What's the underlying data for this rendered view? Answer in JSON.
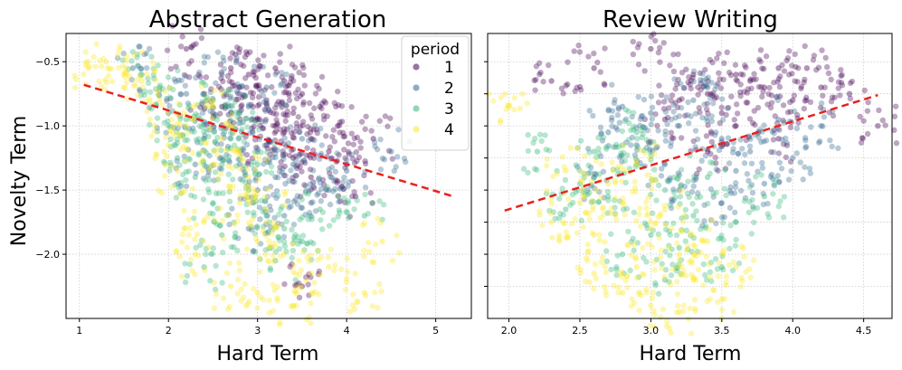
{
  "chart_data": [
    {
      "type": "scatter",
      "title": "Abstract Generation",
      "xlabel": "Hard Term",
      "ylabel": "Novelty Term",
      "xlim": [
        0.85,
        5.4
      ],
      "ylim": [
        -2.5,
        -0.28
      ],
      "xticks": [
        1,
        2,
        3,
        4,
        5
      ],
      "xtick_labels": [
        "1",
        "2",
        "3",
        "4",
        "5"
      ],
      "yticks": [
        -0.5,
        -1.0,
        -1.5,
        -2.0
      ],
      "ytick_labels": [
        "−0.5",
        "−1.0",
        "−1.5",
        "−2.0"
      ],
      "grid": true,
      "legend": {
        "title": "period",
        "position": "top-right",
        "entries": [
          {
            "label": "1",
            "color": "#440154"
          },
          {
            "label": "2",
            "color": "#31688e"
          },
          {
            "label": "3",
            "color": "#35b779"
          },
          {
            "label": "4",
            "color": "#fde725"
          }
        ]
      },
      "series": [
        {
          "name": "1",
          "color": "#440154",
          "points": [
            [
              3.1,
              -0.8
            ],
            [
              3.4,
              -0.9
            ],
            [
              2.8,
              -0.7
            ],
            [
              3.6,
              -1.1
            ],
            [
              3.2,
              -1.0
            ],
            [
              2.9,
              -0.6
            ],
            [
              3.5,
              -0.75
            ],
            [
              3.8,
              -1.2
            ],
            [
              3.3,
              -0.65
            ],
            [
              2.6,
              -0.85
            ],
            [
              3.0,
              -0.95
            ],
            [
              3.7,
              -0.85
            ],
            [
              4.0,
              -1.3
            ],
            [
              3.4,
              -1.25
            ],
            [
              2.4,
              -0.75
            ],
            [
              3.9,
              -1.0
            ],
            [
              3.2,
              -0.55
            ],
            [
              2.2,
              -0.4
            ],
            [
              3.6,
              -1.4
            ],
            [
              4.3,
              -1.1
            ],
            [
              3.5,
              -2.25
            ],
            [
              3.1,
              -1.15
            ],
            [
              2.7,
              -0.55
            ],
            [
              3.3,
              -1.05
            ],
            [
              4.1,
              -1.55
            ]
          ]
        },
        {
          "name": "2",
          "color": "#31688e",
          "points": [
            [
              2.7,
              -1.0
            ],
            [
              3.0,
              -1.2
            ],
            [
              2.5,
              -0.9
            ],
            [
              3.2,
              -1.4
            ],
            [
              2.9,
              -0.85
            ],
            [
              3.4,
              -1.3
            ],
            [
              2.2,
              -0.75
            ],
            [
              3.6,
              -1.6
            ],
            [
              2.8,
              -1.3
            ],
            [
              3.1,
              -0.7
            ],
            [
              2.4,
              -1.1
            ],
            [
              3.8,
              -1.5
            ],
            [
              2.6,
              -0.6
            ],
            [
              3.3,
              -1.7
            ],
            [
              2.0,
              -0.9
            ],
            [
              4.0,
              -1.35
            ],
            [
              3.0,
              -1.5
            ],
            [
              2.3,
              -1.3
            ],
            [
              1.6,
              -0.55
            ],
            [
              3.5,
              -1.1
            ],
            [
              4.5,
              -1.2
            ],
            [
              2.9,
              -1.8
            ]
          ]
        },
        {
          "name": "3",
          "color": "#35b779",
          "points": [
            [
              2.4,
              -1.1
            ],
            [
              2.6,
              -1.3
            ],
            [
              2.2,
              -0.95
            ],
            [
              2.9,
              -1.5
            ],
            [
              2.5,
              -1.6
            ],
            [
              3.1,
              -1.7
            ],
            [
              2.0,
              -1.0
            ],
            [
              2.7,
              -1.1
            ],
            [
              3.3,
              -1.8
            ],
            [
              2.3,
              -1.4
            ],
            [
              2.8,
              -0.9
            ],
            [
              1.9,
              -0.7
            ],
            [
              3.5,
              -1.9
            ],
            [
              2.6,
              -1.85
            ],
            [
              3.0,
              -1.3
            ],
            [
              2.1,
              -1.25
            ],
            [
              3.7,
              -1.65
            ],
            [
              2.5,
              -0.8
            ],
            [
              3.2,
              -2.05
            ],
            [
              1.7,
              -0.6
            ],
            [
              4.2,
              -1.7
            ],
            [
              2.4,
              -2.1
            ]
          ]
        },
        {
          "name": "4",
          "color": "#fde725",
          "points": [
            [
              2.2,
              -1.0
            ],
            [
              2.5,
              -1.3
            ],
            [
              1.9,
              -0.8
            ],
            [
              2.8,
              -1.6
            ],
            [
              2.4,
              -1.75
            ],
            [
              3.0,
              -1.9
            ],
            [
              1.7,
              -0.65
            ],
            [
              2.6,
              -1.1
            ],
            [
              3.3,
              -2.0
            ],
            [
              2.1,
              -1.35
            ],
            [
              2.9,
              -1.4
            ],
            [
              1.5,
              -0.6
            ],
            [
              3.6,
              -2.15
            ],
            [
              2.3,
              -2.0
            ],
            [
              3.1,
              -1.65
            ],
            [
              2.0,
              -1.15
            ],
            [
              3.8,
              -2.1
            ],
            [
              2.7,
              -2.25
            ],
            [
              1.3,
              -0.5
            ],
            [
              4.2,
              -2.3
            ],
            [
              3.4,
              -2.4
            ],
            [
              2.5,
              -0.85
            ],
            [
              4.4,
              -1.9
            ],
            [
              1.1,
              -0.55
            ],
            [
              3.0,
              -2.3
            ]
          ]
        }
      ],
      "trendline": {
        "x": [
          1.05,
          5.2
        ],
        "y": [
          -0.68,
          -1.55
        ],
        "color": "#e8221e",
        "style": "dashed"
      }
    },
    {
      "type": "scatter",
      "title": "Review Writing",
      "xlabel": "Hard Term",
      "ylabel": "",
      "xlim": [
        1.85,
        4.7
      ],
      "ylim": [
        -2.5,
        -0.28
      ],
      "xticks": [
        2.0,
        2.5,
        3.0,
        3.5,
        4.0,
        4.5
      ],
      "xtick_labels": [
        "2.0",
        "2.5",
        "3.0",
        "3.5",
        "4.0",
        "4.5"
      ],
      "yticks": [
        -0.5,
        -0.75,
        -1.0,
        -1.25,
        -1.5,
        -1.75,
        -2.0,
        -2.25
      ],
      "ytick_labels": [],
      "grid": true,
      "series": [
        {
          "name": "1",
          "color": "#440154",
          "points": [
            [
              3.6,
              -0.6
            ],
            [
              3.8,
              -0.7
            ],
            [
              3.4,
              -0.75
            ],
            [
              3.9,
              -0.55
            ],
            [
              3.5,
              -0.9
            ],
            [
              3.7,
              -0.65
            ],
            [
              4.0,
              -0.8
            ],
            [
              3.3,
              -0.6
            ],
            [
              4.1,
              -0.55
            ],
            [
              3.2,
              -0.8
            ],
            [
              3.6,
              -1.0
            ],
            [
              4.2,
              -0.7
            ],
            [
              3.9,
              -1.1
            ],
            [
              3.1,
              -0.95
            ],
            [
              2.6,
              -0.55
            ],
            [
              4.4,
              -0.75
            ],
            [
              3.0,
              -0.4
            ],
            [
              2.3,
              -0.65
            ],
            [
              4.6,
              -1.0
            ],
            [
              3.4,
              -1.2
            ]
          ]
        },
        {
          "name": "2",
          "color": "#31688e",
          "points": [
            [
              3.2,
              -1.0
            ],
            [
              3.5,
              -1.1
            ],
            [
              3.0,
              -0.9
            ],
            [
              3.7,
              -1.2
            ],
            [
              3.3,
              -0.8
            ],
            [
              3.6,
              -1.35
            ],
            [
              2.9,
              -1.15
            ],
            [
              3.9,
              -0.95
            ],
            [
              3.1,
              -1.3
            ],
            [
              3.4,
              -0.7
            ],
            [
              2.8,
              -0.85
            ],
            [
              4.0,
              -1.25
            ],
            [
              3.2,
              -1.5
            ],
            [
              2.7,
              -1.05
            ],
            [
              4.2,
              -1.0
            ],
            [
              3.5,
              -1.6
            ],
            [
              2.6,
              -1.4
            ],
            [
              3.8,
              -1.45
            ]
          ]
        },
        {
          "name": "3",
          "color": "#35b779",
          "points": [
            [
              2.9,
              -1.3
            ],
            [
              3.1,
              -1.5
            ],
            [
              2.8,
              -1.15
            ],
            [
              3.3,
              -1.7
            ],
            [
              2.7,
              -1.55
            ],
            [
              3.0,
              -1.85
            ],
            [
              2.6,
              -1.2
            ],
            [
              3.4,
              -1.4
            ],
            [
              2.8,
              -2.0
            ],
            [
              3.2,
              -1.95
            ],
            [
              2.5,
              -1.45
            ],
            [
              3.6,
              -1.75
            ],
            [
              2.9,
              -1.05
            ],
            [
              3.5,
              -2.1
            ],
            [
              2.4,
              -1.65
            ],
            [
              3.8,
              -1.55
            ],
            [
              2.2,
              -1.2
            ],
            [
              3.1,
              -2.2
            ]
          ]
        },
        {
          "name": "4",
          "color": "#fde725",
          "points": [
            [
              2.8,
              -1.6
            ],
            [
              3.0,
              -1.8
            ],
            [
              2.7,
              -1.45
            ],
            [
              3.2,
              -2.0
            ],
            [
              2.9,
              -2.1
            ],
            [
              3.1,
              -1.65
            ],
            [
              2.6,
              -1.85
            ],
            [
              3.3,
              -2.2
            ],
            [
              2.8,
              -2.3
            ],
            [
              2.5,
              -1.6
            ],
            [
              3.4,
              -1.9
            ],
            [
              2.4,
              -1.35
            ],
            [
              3.0,
              -2.4
            ],
            [
              3.6,
              -2.1
            ],
            [
              2.3,
              -1.75
            ],
            [
              2.0,
              -0.85
            ],
            [
              3.2,
              -2.45
            ],
            [
              2.9,
              -1.3
            ],
            [
              3.5,
              -2.35
            ],
            [
              2.6,
              -2.15
            ]
          ]
        }
      ],
      "trendline": {
        "x": [
          1.97,
          4.6
        ],
        "y": [
          -1.66,
          -0.76
        ],
        "color": "#e8221e",
        "style": "dashed"
      }
    }
  ]
}
